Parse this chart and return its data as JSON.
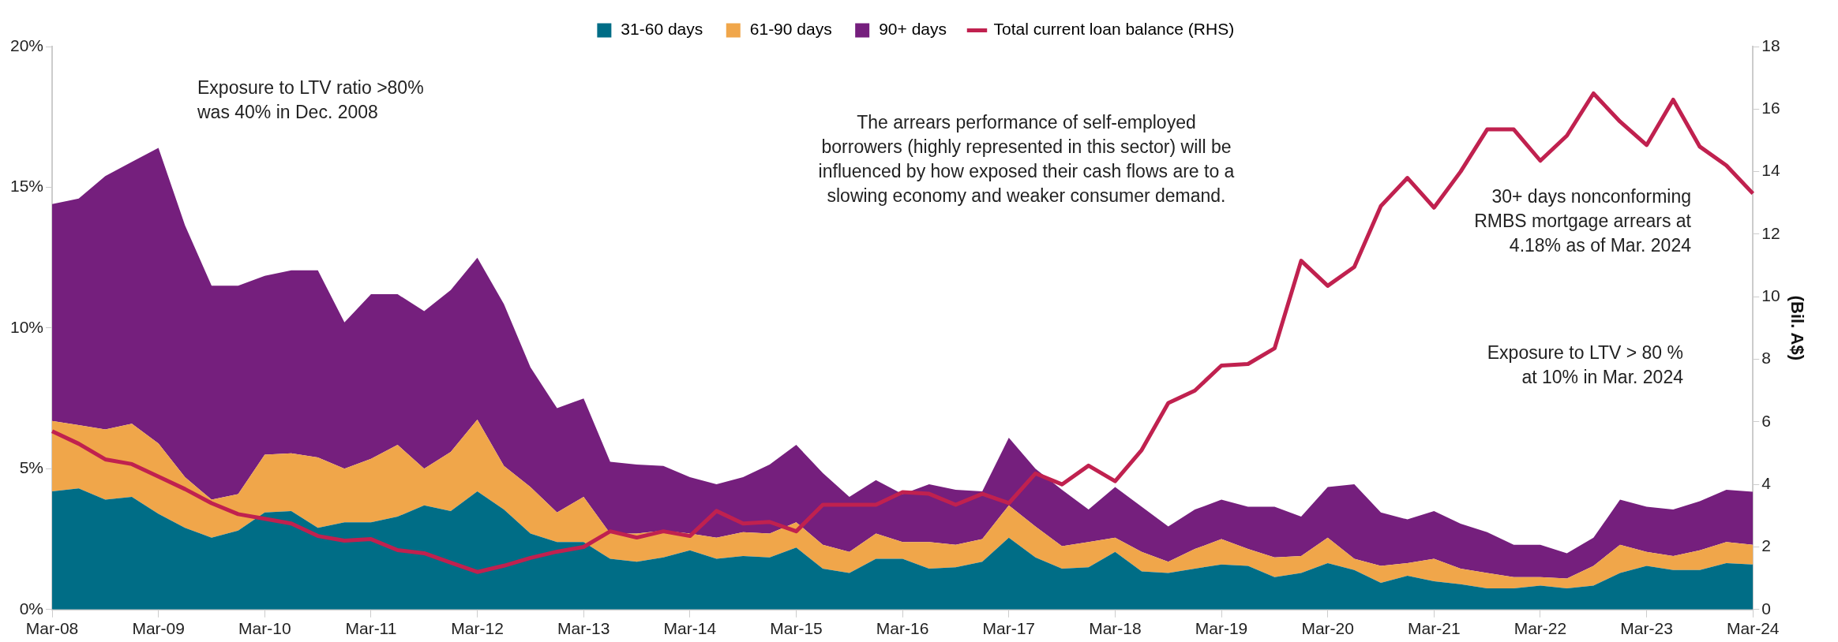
{
  "chart_data": {
    "type": "area",
    "categories": [
      "Mar-08",
      null,
      null,
      null,
      "Mar-09",
      null,
      null,
      null,
      "Mar-10",
      null,
      null,
      null,
      "Mar-11",
      null,
      null,
      null,
      "Mar-12",
      null,
      null,
      null,
      "Mar-13",
      null,
      null,
      null,
      "Mar-14",
      null,
      null,
      null,
      "Mar-15",
      null,
      null,
      null,
      "Mar-16",
      null,
      null,
      null,
      "Mar-17",
      null,
      null,
      null,
      "Mar-18",
      null,
      null,
      null,
      "Mar-19",
      null,
      null,
      null,
      "Mar-20",
      null,
      null,
      null,
      "Mar-21",
      null,
      null,
      null,
      "Mar-22",
      null,
      null,
      null,
      "Mar-23",
      null,
      null,
      null,
      "Mar-24"
    ],
    "stacked": true,
    "series": [
      {
        "name": "31-60 days",
        "type": "area",
        "color": "#006d86",
        "values": [
          4.2,
          4.3,
          3.9,
          4.0,
          3.4,
          2.9,
          2.55,
          2.8,
          3.45,
          3.5,
          2.9,
          3.1,
          3.1,
          3.3,
          3.7,
          3.5,
          4.2,
          3.55,
          2.7,
          2.4,
          2.4,
          1.8,
          1.7,
          1.85,
          2.1,
          1.8,
          1.9,
          1.85,
          2.2,
          1.45,
          1.3,
          1.8,
          1.8,
          1.45,
          1.5,
          1.7,
          2.55,
          1.85,
          1.45,
          1.5,
          2.05,
          1.35,
          1.3,
          1.45,
          1.6,
          1.55,
          1.15,
          1.3,
          1.65,
          1.4,
          0.95,
          1.2,
          1.0,
          0.9,
          0.75,
          0.75,
          0.85,
          0.75,
          0.85,
          1.3,
          1.55,
          1.4,
          1.4,
          1.65,
          1.6
        ]
      },
      {
        "name": "61-90 days",
        "type": "area",
        "color": "#f0a64a",
        "values": [
          2.5,
          2.25,
          2.5,
          2.6,
          2.5,
          1.8,
          1.35,
          1.3,
          2.05,
          2.05,
          2.5,
          1.9,
          2.25,
          2.55,
          1.3,
          2.1,
          2.55,
          1.55,
          1.65,
          1.05,
          1.6,
          0.9,
          1.0,
          0.95,
          0.6,
          0.75,
          0.85,
          0.85,
          0.9,
          0.85,
          0.75,
          0.9,
          0.6,
          0.95,
          0.8,
          0.8,
          1.15,
          1.1,
          0.8,
          0.9,
          0.5,
          0.7,
          0.4,
          0.7,
          0.9,
          0.6,
          0.7,
          0.6,
          0.9,
          0.4,
          0.6,
          0.45,
          0.8,
          0.55,
          0.55,
          0.4,
          0.3,
          0.35,
          0.7,
          1.0,
          0.5,
          0.5,
          0.7,
          0.75,
          0.7
        ]
      },
      {
        "name": "90+ days",
        "type": "area",
        "color": "#751f7d",
        "values": [
          7.7,
          8.05,
          9.0,
          9.3,
          10.5,
          8.95,
          7.6,
          7.4,
          6.35,
          6.5,
          6.65,
          5.2,
          5.85,
          5.35,
          5.6,
          5.75,
          5.75,
          5.75,
          4.25,
          3.7,
          3.5,
          2.55,
          2.45,
          2.3,
          2.0,
          1.9,
          1.95,
          2.45,
          2.75,
          2.55,
          1.95,
          1.9,
          1.7,
          2.05,
          1.95,
          1.7,
          2.4,
          2.05,
          2.0,
          1.15,
          1.8,
          1.6,
          1.25,
          1.4,
          1.4,
          1.5,
          1.8,
          1.4,
          1.8,
          2.65,
          1.9,
          1.55,
          1.7,
          1.6,
          1.45,
          1.15,
          1.15,
          0.9,
          1.0,
          1.6,
          1.6,
          1.65,
          1.75,
          1.85,
          1.88
        ]
      },
      {
        "name": "Total current loan balance (RHS)",
        "type": "line",
        "axis": "y2",
        "color": "#c0214f",
        "values": [
          5.7,
          5.3,
          4.8,
          4.65,
          4.25,
          3.85,
          3.4,
          3.05,
          2.9,
          2.75,
          2.35,
          2.2,
          2.25,
          1.9,
          1.8,
          1.5,
          1.2,
          1.4,
          1.65,
          1.85,
          2.0,
          2.5,
          2.3,
          2.5,
          2.35,
          3.15,
          2.75,
          2.8,
          2.5,
          3.35,
          3.35,
          3.35,
          3.75,
          3.7,
          3.35,
          3.7,
          3.4,
          4.35,
          4.0,
          4.6,
          4.1,
          5.1,
          6.6,
          7.0,
          7.8,
          7.85,
          8.35,
          11.15,
          10.35,
          10.95,
          12.9,
          13.8,
          12.85,
          14.0,
          15.35,
          15.35,
          14.35,
          15.15,
          16.5,
          15.6,
          14.85,
          16.3,
          14.8,
          14.2,
          13.3
        ]
      }
    ],
    "ylim": [
      0,
      20
    ],
    "yticks": [
      {
        "value": 0,
        "label": "0%"
      },
      {
        "value": 5,
        "label": "5%"
      },
      {
        "value": 10,
        "label": "10%"
      },
      {
        "value": 15,
        "label": "15%"
      },
      {
        "value": 20,
        "label": "20%"
      }
    ],
    "y2lim": [
      0,
      18
    ],
    "y2ticks": [
      0,
      2,
      4,
      6,
      8,
      10,
      12,
      14,
      16,
      18
    ],
    "y2label": "(Bil. A$)",
    "legend": "top",
    "annotations": [
      "Exposure to LTV ratio >80%\nwas 40% in Dec. 2008",
      "The arrears performance of self-employed\nborrowers (highly represented in this sector) will be\ninfluenced by how exposed their cash flows are to a\nslowing economy and weaker consumer demand.",
      "30+ days nonconforming\nRMBS mortgage arrears at\n4.18% as of Mar. 2024",
      "Exposure to LTV > 80 %\nat 10% in Mar. 2024"
    ]
  }
}
